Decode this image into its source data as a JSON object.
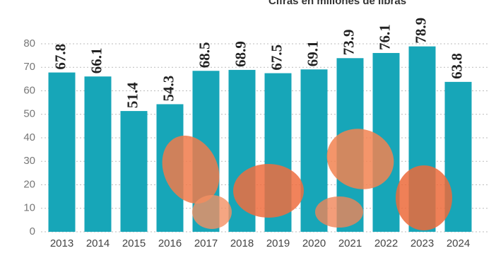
{
  "chart_data": {
    "type": "bar",
    "subtitle": "Cifras en millones de libras",
    "categories": [
      "2013",
      "2014",
      "2015",
      "2016",
      "2017",
      "2018",
      "2019",
      "2020",
      "2021",
      "2022",
      "2023",
      "2024"
    ],
    "values": [
      67.8,
      66.1,
      51.4,
      54.3,
      68.5,
      68.9,
      67.5,
      69.1,
      73.9,
      76.1,
      78.9,
      63.8
    ],
    "color": "#17a6b8",
    "ylim": [
      0,
      80
    ],
    "yticks": [
      0,
      10,
      20,
      30,
      40,
      50,
      60,
      70,
      80
    ],
    "grid": true
  }
}
